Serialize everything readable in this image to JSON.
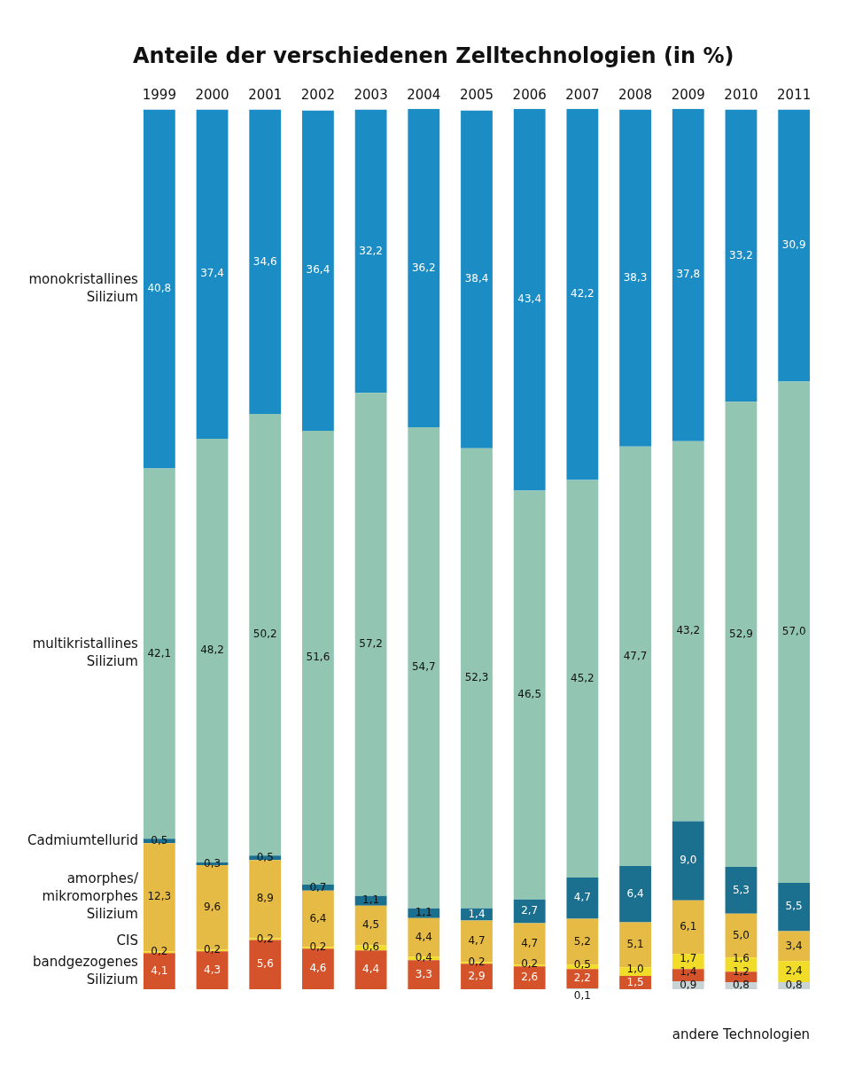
{
  "chart_data": {
    "type": "bar",
    "title": "Anteile der verschiedenen Zelltechnologien (in %)",
    "categories": [
      "1999",
      "2000",
      "2001",
      "2002",
      "2003",
      "2004",
      "2005",
      "2006",
      "2007",
      "2008",
      "2009",
      "2010",
      "2011"
    ],
    "stacked": true,
    "legend": false,
    "grid": false,
    "tick_labels": "x",
    "series": [
      {
        "name": "andere Technologien",
        "color": "#c9d3d3",
        "values": [
          null,
          null,
          null,
          null,
          null,
          null,
          null,
          null,
          0.1,
          null,
          0.9,
          0.8,
          0.8
        ],
        "value_labels": [
          null,
          null,
          null,
          null,
          null,
          null,
          null,
          null,
          "0,1",
          null,
          "0,9",
          "0,8",
          "0,8"
        ]
      },
      {
        "name": "bandgezogenes Silizium",
        "color": "#d4532a",
        "values": [
          4.1,
          4.3,
          5.6,
          4.6,
          4.4,
          3.3,
          2.9,
          2.6,
          2.2,
          1.5,
          1.4,
          1.2,
          null
        ],
        "value_labels": [
          "4,1",
          "4,3",
          "5,6",
          "4,6",
          "4,4",
          "3,3",
          "2,9",
          "2,6",
          "2,2",
          "1,5",
          "1,4",
          "1,2",
          null
        ]
      },
      {
        "name": "CIS",
        "color": "#f2dc2a",
        "values": [
          0.2,
          0.2,
          0.2,
          0.2,
          0.6,
          0.4,
          0.2,
          0.2,
          0.5,
          1.0,
          1.7,
          1.6,
          2.4
        ],
        "value_labels": [
          "0,2",
          "0,2",
          "0,2",
          "0,2",
          "0,6",
          "0,4",
          "0,2",
          "0,2",
          "0,5",
          "1,0",
          "1,7",
          "1,6",
          "2,4"
        ]
      },
      {
        "name": "amorphes/ mikromorphes Silizium",
        "color": "#e6bb45",
        "values": [
          12.3,
          9.6,
          8.9,
          6.4,
          4.5,
          4.4,
          4.7,
          4.7,
          5.2,
          5.1,
          6.1,
          5.0,
          3.4
        ],
        "value_labels": [
          "12,3",
          "9,6",
          "8,9",
          "6,4",
          "4,5",
          "4,4",
          "4,7",
          "4,7",
          "5,2",
          "5,1",
          "6,1",
          "5,0",
          "3,4"
        ]
      },
      {
        "name": "Cadmiumtellurid",
        "color": "#1b6f8f",
        "values": [
          0.5,
          0.3,
          0.5,
          0.7,
          1.1,
          1.1,
          1.4,
          2.7,
          4.7,
          6.4,
          9.0,
          5.3,
          5.5
        ],
        "value_labels": [
          "0,5",
          "0,3",
          "0,5",
          "0,7",
          "1,1",
          "1,1",
          "1,4",
          "2,7",
          "4,7",
          "6,4",
          "9,0",
          "5,3",
          "5,5"
        ]
      },
      {
        "name": "multikristallines Silizium",
        "color": "#93c5b3",
        "values": [
          42.1,
          48.2,
          50.2,
          51.6,
          57.2,
          54.7,
          52.3,
          46.5,
          45.2,
          47.7,
          43.2,
          52.9,
          57.0
        ],
        "value_labels": [
          "42,1",
          "48,2",
          "50,2",
          "51,6",
          "57,2",
          "54,7",
          "52,3",
          "46,5",
          "45,2",
          "47,7",
          "43,2",
          "52,9",
          "57,0"
        ]
      },
      {
        "name": "monokristallines Silizium",
        "color": "#1c8cc4",
        "values": [
          40.8,
          37.4,
          34.6,
          36.4,
          32.2,
          36.2,
          38.4,
          43.4,
          42.2,
          38.3,
          37.8,
          33.2,
          30.9
        ],
        "value_labels": [
          "40,8",
          "37,4",
          "34,6",
          "36,4",
          "32,2",
          "36,2",
          "38,4",
          "43,4",
          "42,2",
          "38,3",
          "37,8",
          "33,2",
          "30,9"
        ]
      }
    ]
  }
}
